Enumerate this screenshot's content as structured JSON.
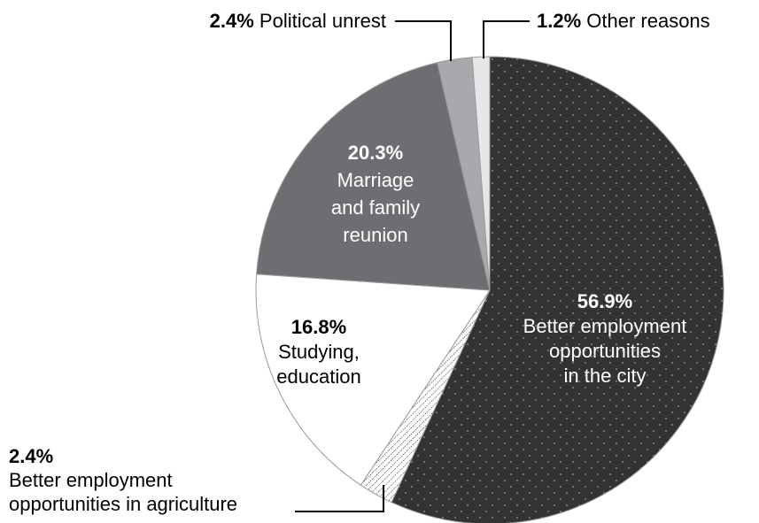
{
  "chart_data": {
    "type": "pie",
    "slices": [
      {
        "label": "Better employment opportunities in the city",
        "value": 56.9,
        "pct_text": "56.9%",
        "lines": [
          "Better employment",
          "opportunities",
          "in the city"
        ],
        "fill": "#333333",
        "pattern": "dots"
      },
      {
        "label": "Better employment opportunities in agriculture",
        "value": 2.4,
        "pct_text": "2.4%",
        "lines": [
          "Better employment",
          "opportunities in agriculture"
        ],
        "fill": "#ffffff",
        "pattern": "hatch"
      },
      {
        "label": "Studying, education",
        "value": 16.8,
        "pct_text": "16.8%",
        "lines": [
          "Studying,",
          "education"
        ],
        "fill": "#ffffff",
        "pattern": "none"
      },
      {
        "label": "Marriage and family reunion",
        "value": 20.3,
        "pct_text": "20.3%",
        "lines": [
          "Marriage",
          "and family",
          "reunion"
        ],
        "fill": "#6d6e71",
        "pattern": "none"
      },
      {
        "label": "Political unrest",
        "value": 2.4,
        "pct_text": "2.4%",
        "lines": [
          "Political unrest"
        ],
        "fill": "#a7a9ac",
        "pattern": "none"
      },
      {
        "label": "Other reasons",
        "value": 1.2,
        "pct_text": "1.2%",
        "lines": [
          "Other reasons"
        ],
        "fill": "#e6e7e8",
        "pattern": "none"
      }
    ],
    "start_angle_deg": 0,
    "direction": "clockwise",
    "legend": "none"
  }
}
